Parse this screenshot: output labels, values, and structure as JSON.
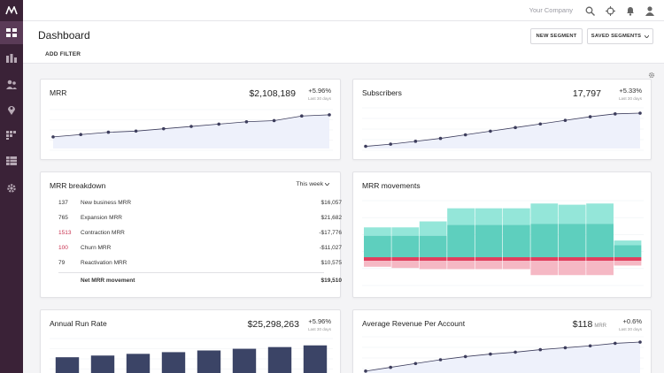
{
  "topbar": {
    "company": "Your Company"
  },
  "header": {
    "title": "Dashboard",
    "add_filter": "ADD FILTER",
    "new_segment": "NEW SEGMENT",
    "saved_segments": "SAVED SEGMENTS"
  },
  "colors": {
    "sidebar": "#3a2237",
    "line": "#3d3d5c",
    "teal": "#5ecfbe",
    "red": "#e0405e",
    "bar": "#3b4466"
  },
  "mrr": {
    "title": "MRR",
    "value": "$2,108,189",
    "change": "+5.96%",
    "period": "Last 30 days",
    "chart_data": {
      "type": "line",
      "values": [
        1.0,
        1.2,
        1.4,
        1.5,
        1.7,
        1.9,
        2.1,
        2.3,
        2.4,
        2.8,
        2.9
      ]
    }
  },
  "subscribers": {
    "title": "Subscribers",
    "value": "17,797",
    "change": "+5.33%",
    "period": "Last 30 days",
    "chart_data": {
      "type": "line",
      "values": [
        0.3,
        0.6,
        1.0,
        1.4,
        1.9,
        2.4,
        2.9,
        3.4,
        3.9,
        4.4,
        4.8,
        4.9
      ]
    }
  },
  "breakdown": {
    "title": "MRR breakdown",
    "period": "This week",
    "rows": [
      {
        "count": "137",
        "label": "New business MRR",
        "value": "$16,057"
      },
      {
        "count": "765",
        "label": "Expansion MRR",
        "value": "$21,682"
      },
      {
        "count": "1513",
        "label": "Contraction MRR",
        "value": "-$17,776"
      },
      {
        "count": "100",
        "label": "Churn MRR",
        "value": "-$11,027"
      },
      {
        "count": "79",
        "label": "Reactivation MRR",
        "value": "$10,575"
      }
    ],
    "total_label": "Net MRR movement",
    "total_value": "$19,510"
  },
  "movements": {
    "title": "MRR movements",
    "chart_data": {
      "type": "bar",
      "series": [
        {
          "name": "",
          "values": [
            7,
            7,
            12,
            14,
            14,
            14,
            17,
            16,
            17,
            4
          ]
        },
        {
          "name": "",
          "values": [
            18,
            18,
            18,
            27,
            27,
            27,
            28,
            28,
            28,
            10
          ]
        },
        {
          "name": "",
          "values": [
            -3,
            -3,
            -3,
            -3,
            -3,
            -3,
            -3,
            -3,
            -3,
            -3
          ]
        },
        {
          "name": "",
          "values": [
            -5,
            -6,
            -7,
            -7,
            -7,
            -7,
            -12,
            -12,
            -12,
            -4
          ]
        }
      ]
    }
  },
  "arr": {
    "title": "Annual Run Rate",
    "value": "$25,298,263",
    "change": "+5.96%",
    "period": "Last 30 days",
    "chart_data": {
      "type": "bar",
      "values": [
        14,
        15,
        16,
        17,
        18,
        19,
        20,
        21
      ]
    }
  },
  "arpa": {
    "title": "Average Revenue Per Account",
    "value": "$118",
    "unit": "MRR",
    "change": "+0.6%",
    "period": "Last 30 days",
    "chart_data": {
      "type": "line",
      "values": [
        1.0,
        1.6,
        2.2,
        2.8,
        3.3,
        3.7,
        4.0,
        4.4,
        4.7,
        5.0,
        5.4,
        5.6
      ]
    }
  }
}
